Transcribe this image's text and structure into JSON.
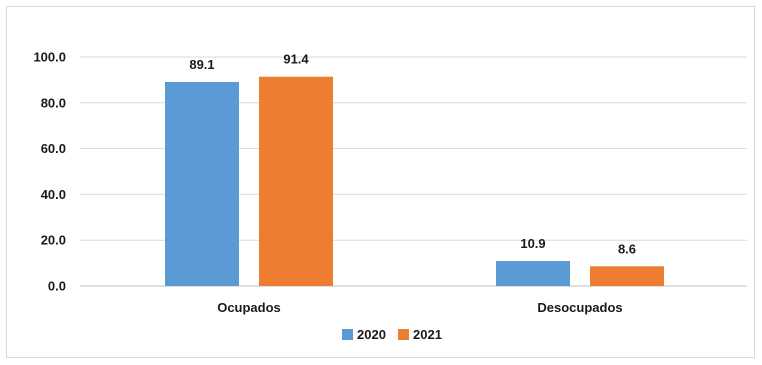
{
  "chart_data": {
    "type": "bar",
    "categories": [
      "Ocupados",
      "Desocupados"
    ],
    "series": [
      {
        "name": "2020",
        "values": [
          89.1,
          10.9
        ],
        "labels": [
          "89.1",
          "10.9"
        ],
        "color": "#5b9bd5"
      },
      {
        "name": "2021",
        "values": [
          91.4,
          8.6
        ],
        "labels": [
          "91.4",
          "8.6"
        ],
        "color": "#ed7d31"
      }
    ],
    "title": "",
    "xlabel": "",
    "ylabel": "",
    "ylim": [
      0,
      100
    ],
    "yticks": [
      0,
      20,
      40,
      60,
      80,
      100
    ],
    "ytick_labels": [
      "0.0",
      "20.0",
      "40.0",
      "60.0",
      "80.0",
      "100.0"
    ],
    "grid": true,
    "legend_position": "bottom"
  }
}
